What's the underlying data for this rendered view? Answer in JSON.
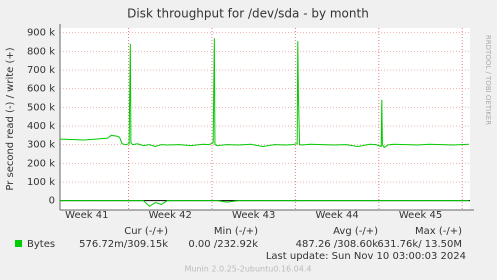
{
  "chart_data": {
    "type": "line",
    "title": "Disk throughput for /dev/sda - by month",
    "y_label": "Pr second read (-) / write (+)",
    "side_text": "RRDTOOL / TOBI OETIKER",
    "x": [
      0,
      1,
      2,
      3,
      4,
      4.3,
      4.8,
      5.0,
      5.2,
      5.5,
      5.8,
      5.85,
      5.9,
      5.95,
      6.1,
      6.5,
      7,
      7.5,
      8,
      8.5,
      9,
      10,
      11,
      12,
      12.5,
      12.85,
      12.9,
      12.95,
      13.0,
      13.2,
      14,
      15,
      16,
      17,
      18,
      19,
      19.5,
      19.9,
      19.95,
      20.0,
      20.1,
      20.3,
      21,
      22,
      23,
      24,
      25,
      26,
      26.5,
      26.95,
      27.0,
      27.05,
      27.2,
      27.5,
      28,
      29,
      30,
      31,
      32,
      33,
      34.3
    ],
    "series": [
      {
        "color": "#00cc00",
        "values": [
          330000,
          328000,
          325000,
          330000,
          335000,
          350000,
          345000,
          340000,
          305000,
          300000,
          305000,
          570000,
          840000,
          310000,
          300000,
          305000,
          295000,
          300000,
          290000,
          300000,
          298000,
          300000,
          295000,
          302000,
          300000,
          310000,
          590000,
          870000,
          300000,
          295000,
          300000,
          298000,
          302000,
          290000,
          300000,
          298000,
          300000,
          305000,
          855000,
          580000,
          300000,
          298000,
          302000,
          300000,
          298000,
          300000,
          290000,
          302000,
          300000,
          290000,
          540000,
          300000,
          285000,
          298000,
          302000,
          300000,
          298000,
          302000,
          300000,
          298000,
          302000
        ]
      },
      {
        "color": "#00cc00",
        "values": [
          0,
          0,
          0,
          0,
          0,
          0,
          0,
          0,
          0,
          0,
          0,
          0,
          0,
          0,
          0,
          0,
          0,
          -30000,
          -10000,
          -20000,
          0,
          0,
          0,
          0,
          0,
          0,
          0,
          0,
          0,
          0,
          -8000,
          0,
          0,
          0,
          0,
          0,
          0,
          0,
          0,
          0,
          0,
          0,
          0,
          0,
          0,
          0,
          0,
          0,
          0,
          0,
          0,
          0,
          0,
          0,
          0,
          0,
          0,
          0,
          0,
          0,
          0
        ]
      }
    ],
    "xlim": [
      0,
      34.4
    ],
    "xticks": [
      {
        "value": 2.25,
        "label": "Week 41"
      },
      {
        "value": 9.25,
        "label": "Week 42"
      },
      {
        "value": 16.25,
        "label": "Week 43"
      },
      {
        "value": 23.25,
        "label": "Week 44"
      },
      {
        "value": 30.25,
        "label": "Week 45"
      }
    ],
    "ylim": [
      -50000,
      925000
    ],
    "yticks": [
      0,
      {
        "value": 100000,
        "label": "100 k"
      },
      {
        "value": 200000,
        "label": "200 k"
      },
      {
        "value": 300000,
        "label": "300 k"
      },
      {
        "value": 400000,
        "label": "400 k"
      },
      {
        "value": 500000,
        "label": "500 k"
      },
      {
        "value": 600000,
        "label": "600 k"
      },
      {
        "value": 700000,
        "label": "700 k"
      },
      {
        "value": 800000,
        "label": "800 k"
      },
      {
        "value": 900000,
        "label": "900 k"
      }
    ],
    "grid": true,
    "legend": {
      "headers": [
        "Cur (-/+)",
        "Min (-/+)",
        "Avg (-/+)",
        "Max (-/+)"
      ],
      "label": "Bytes",
      "color": "#00cc00",
      "cells": [
        "576.72m/309.15k",
        "0.00 /232.92k",
        "487.26 /308.60k",
        "631.76k/ 13.50M"
      ]
    },
    "last_update": "Last update: Sun Nov 10 03:00:03 2024",
    "footer": "Munin 2.0.25-2ubuntu0.16.04.4"
  }
}
